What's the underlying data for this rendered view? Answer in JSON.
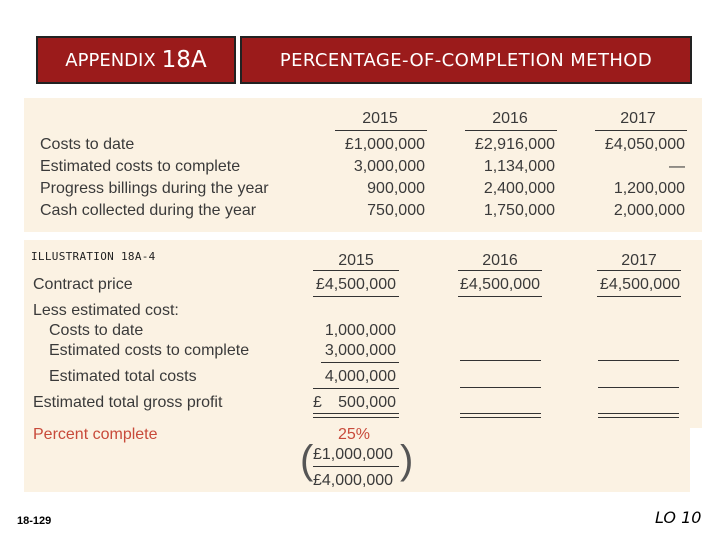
{
  "header": {
    "appendix_label": "APPENDIX",
    "appendix_number": "18A",
    "title": "PERCENTAGE-OF-COMPLETION METHOD"
  },
  "top_table": {
    "years": [
      "2015",
      "2016",
      "2017"
    ],
    "rows": [
      {
        "label": "Costs to date",
        "values": [
          "£1,000,000",
          "£2,916,000",
          "£4,050,000"
        ]
      },
      {
        "label": "Estimated costs to complete",
        "values": [
          "3,000,000",
          "1,134,000",
          "—"
        ]
      },
      {
        "label": "Progress billings during the year",
        "values": [
          "900,000",
          "2,400,000",
          "1,200,000"
        ]
      },
      {
        "label": "Cash collected during the year",
        "values": [
          "750,000",
          "1,750,000",
          "2,000,000"
        ]
      }
    ]
  },
  "illustration": "ILLUSTRATION 18A-4",
  "bottom_table": {
    "years": [
      "2015",
      "2016",
      "2017"
    ],
    "contract_price_label": "Contract price",
    "contract_price": [
      "£4,500,000",
      "£4,500,000",
      "£4,500,000"
    ],
    "less_label": "Less estimated cost:",
    "costs_to_date_label": "Costs to date",
    "costs_to_date": "1,000,000",
    "est_to_complete_label": "Estimated costs to complete",
    "est_to_complete": "3,000,000",
    "est_total_label": "Estimated total costs",
    "est_total": "4,000,000",
    "gross_profit_label": "Estimated total gross profit",
    "gross_profit_currency": "£",
    "gross_profit": "500,000",
    "percent_label": "Percent complete",
    "percent": "25%",
    "fraction_num": "£1,000,000",
    "fraction_den": "£4,000,000"
  },
  "footer": {
    "slide_number": "18-129",
    "lo": "LO 10"
  },
  "colors": {
    "header_bg": "#9b1b1b",
    "panel_bg": "#fbf2e3",
    "accent_red": "#c84a3a"
  }
}
